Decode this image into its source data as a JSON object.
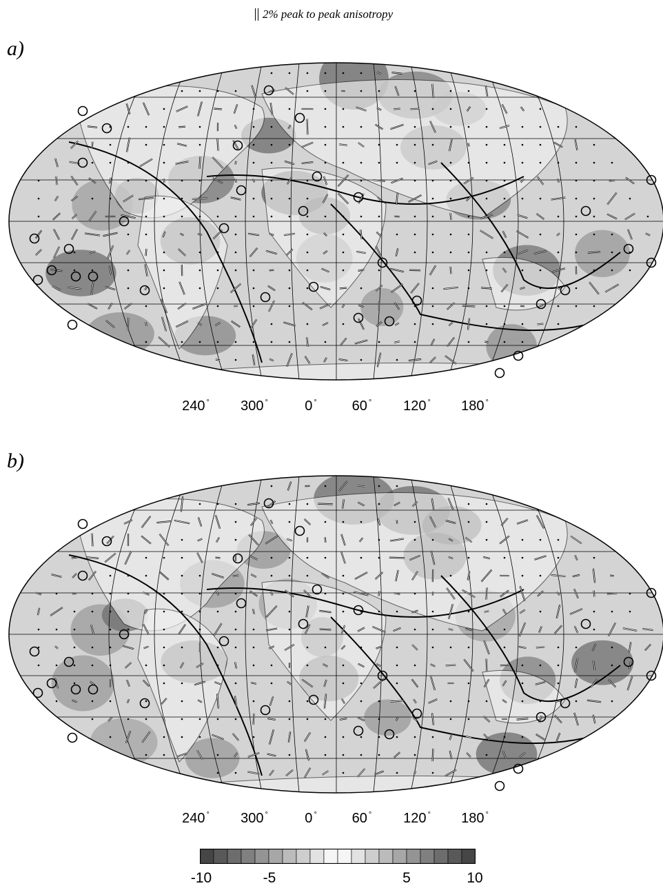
{
  "legend": {
    "scale_text": "2% peak to peak anisotropy"
  },
  "panels": [
    {
      "label": "a)",
      "lon_labels": [
        "240",
        "300",
        "0",
        "60",
        "120",
        "180"
      ]
    },
    {
      "label": "b)",
      "lon_labels": [
        "240",
        "300",
        "0",
        "60",
        "120",
        "180"
      ]
    }
  ],
  "colorbar": {
    "tick_labels": [
      "-10",
      "-5",
      "5",
      "10"
    ],
    "min": -10,
    "max": 10,
    "steps": 20,
    "dark_color": "#3a3a3a",
    "light_color": "#ffffff"
  },
  "colors": {
    "ocean_gray": "#d4d4d4",
    "land_line": "#000000"
  }
}
